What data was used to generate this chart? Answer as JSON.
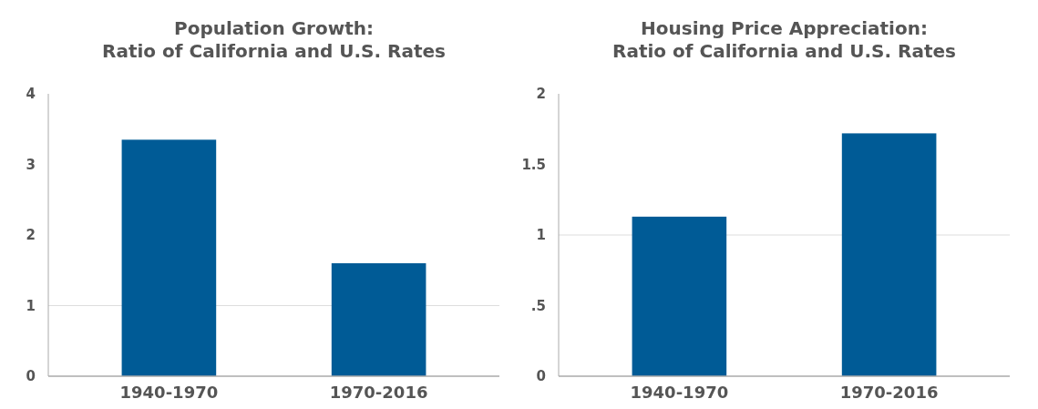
{
  "chart_data": [
    {
      "type": "bar",
      "title": "Population Growth:\nRatio of California and U.S. Rates",
      "categories": [
        "1940-1970",
        "1970-2016"
      ],
      "values": [
        3.35,
        1.6
      ],
      "color": "#005b96",
      "ylim": [
        0,
        4
      ],
      "yticks": [
        0,
        1,
        2,
        3,
        4
      ],
      "ref_lines": [
        {
          "axis": "y",
          "value": 1,
          "color": "#dddddd"
        }
      ]
    },
    {
      "type": "bar",
      "title": "Housing Price Appreciation:\nRatio of California and U.S. Rates",
      "categories": [
        "1940-1970",
        "1970-2016"
      ],
      "values": [
        1.13,
        1.72
      ],
      "color": "#005b96",
      "ylim": [
        0,
        2
      ],
      "yticks": [
        0,
        {
          "value": 0.5,
          "label": ".5"
        },
        1,
        1.5,
        2
      ],
      "ref_lines": [
        {
          "axis": "y",
          "value": 1,
          "color": "#dddddd"
        }
      ]
    }
  ]
}
